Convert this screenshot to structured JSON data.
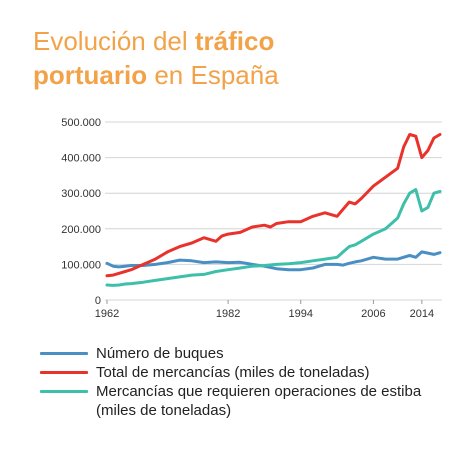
{
  "title": {
    "part1": "Evolución del ",
    "part2_bold": "tráfico",
    "part3_bold": "portuario",
    "part4": " en España"
  },
  "colors": {
    "title": "#f2a34a",
    "buques": "#4a8fc3",
    "mercancias": "#e8322b",
    "estiba": "#3dbfaa"
  },
  "chart_data": {
    "type": "line",
    "x_ticks": [
      1962,
      1982,
      1994,
      2006,
      2014
    ],
    "xlim": [
      1962,
      2017
    ],
    "ylim": [
      0,
      500000
    ],
    "y_ticks": [
      0,
      100000,
      200000,
      300000,
      400000,
      500000
    ],
    "y_tick_labels": [
      "0",
      "100.000",
      "200.000",
      "300.000",
      "400.000",
      "500.000"
    ],
    "grid": true,
    "legend_position": "bottom",
    "series": [
      {
        "name": "Número de buques",
        "color": "#4a8fc3",
        "x": [
          1962,
          1963,
          1964,
          1965,
          1966,
          1968,
          1970,
          1972,
          1974,
          1976,
          1978,
          1980,
          1982,
          1984,
          1986,
          1988,
          1990,
          1992,
          1994,
          1996,
          1998,
          2000,
          2001,
          2002,
          2003,
          2004,
          2006,
          2008,
          2010,
          2012,
          2013,
          2014,
          2016,
          2017
        ],
        "y": [
          103000,
          95000,
          93000,
          95000,
          97000,
          97000,
          100000,
          105000,
          112000,
          110000,
          105000,
          107000,
          105000,
          106000,
          100000,
          95000,
          88000,
          85000,
          85000,
          90000,
          100000,
          100000,
          98000,
          103000,
          107000,
          110000,
          120000,
          115000,
          115000,
          125000,
          120000,
          135000,
          128000,
          133000
        ]
      },
      {
        "name": "Total de mercancías (miles de toneladas)",
        "color": "#e8322b",
        "x": [
          1962,
          1963,
          1964,
          1965,
          1966,
          1968,
          1970,
          1972,
          1974,
          1976,
          1978,
          1980,
          1981,
          1982,
          1984,
          1986,
          1988,
          1989,
          1990,
          1992,
          1994,
          1996,
          1998,
          1999,
          2000,
          2001,
          2002,
          2003,
          2004,
          2006,
          2008,
          2010,
          2011,
          2012,
          2013,
          2014,
          2015,
          2016,
          2017
        ],
        "y": [
          68000,
          70000,
          75000,
          80000,
          85000,
          100000,
          115000,
          135000,
          150000,
          160000,
          175000,
          165000,
          180000,
          185000,
          190000,
          205000,
          210000,
          205000,
          215000,
          220000,
          220000,
          235000,
          245000,
          240000,
          235000,
          255000,
          275000,
          270000,
          285000,
          320000,
          345000,
          370000,
          430000,
          465000,
          460000,
          400000,
          420000,
          455000,
          465000
        ]
      },
      {
        "name": "Mercancías que requieren operaciones de estiba (miles de toneladas)",
        "color": "#3dbfaa",
        "x": [
          1962,
          1963,
          1964,
          1965,
          1966,
          1968,
          1970,
          1972,
          1974,
          1976,
          1978,
          1980,
          1982,
          1984,
          1986,
          1988,
          1990,
          1992,
          1994,
          1996,
          1998,
          2000,
          2001,
          2002,
          2003,
          2004,
          2006,
          2008,
          2010,
          2011,
          2012,
          2013,
          2014,
          2015,
          2016,
          2017
        ],
        "y": [
          42000,
          41000,
          42000,
          45000,
          46000,
          50000,
          55000,
          60000,
          65000,
          70000,
          72000,
          80000,
          85000,
          90000,
          95000,
          97000,
          100000,
          102000,
          105000,
          110000,
          115000,
          120000,
          135000,
          150000,
          155000,
          165000,
          185000,
          200000,
          230000,
          270000,
          300000,
          310000,
          250000,
          260000,
          300000,
          305000
        ]
      }
    ]
  }
}
